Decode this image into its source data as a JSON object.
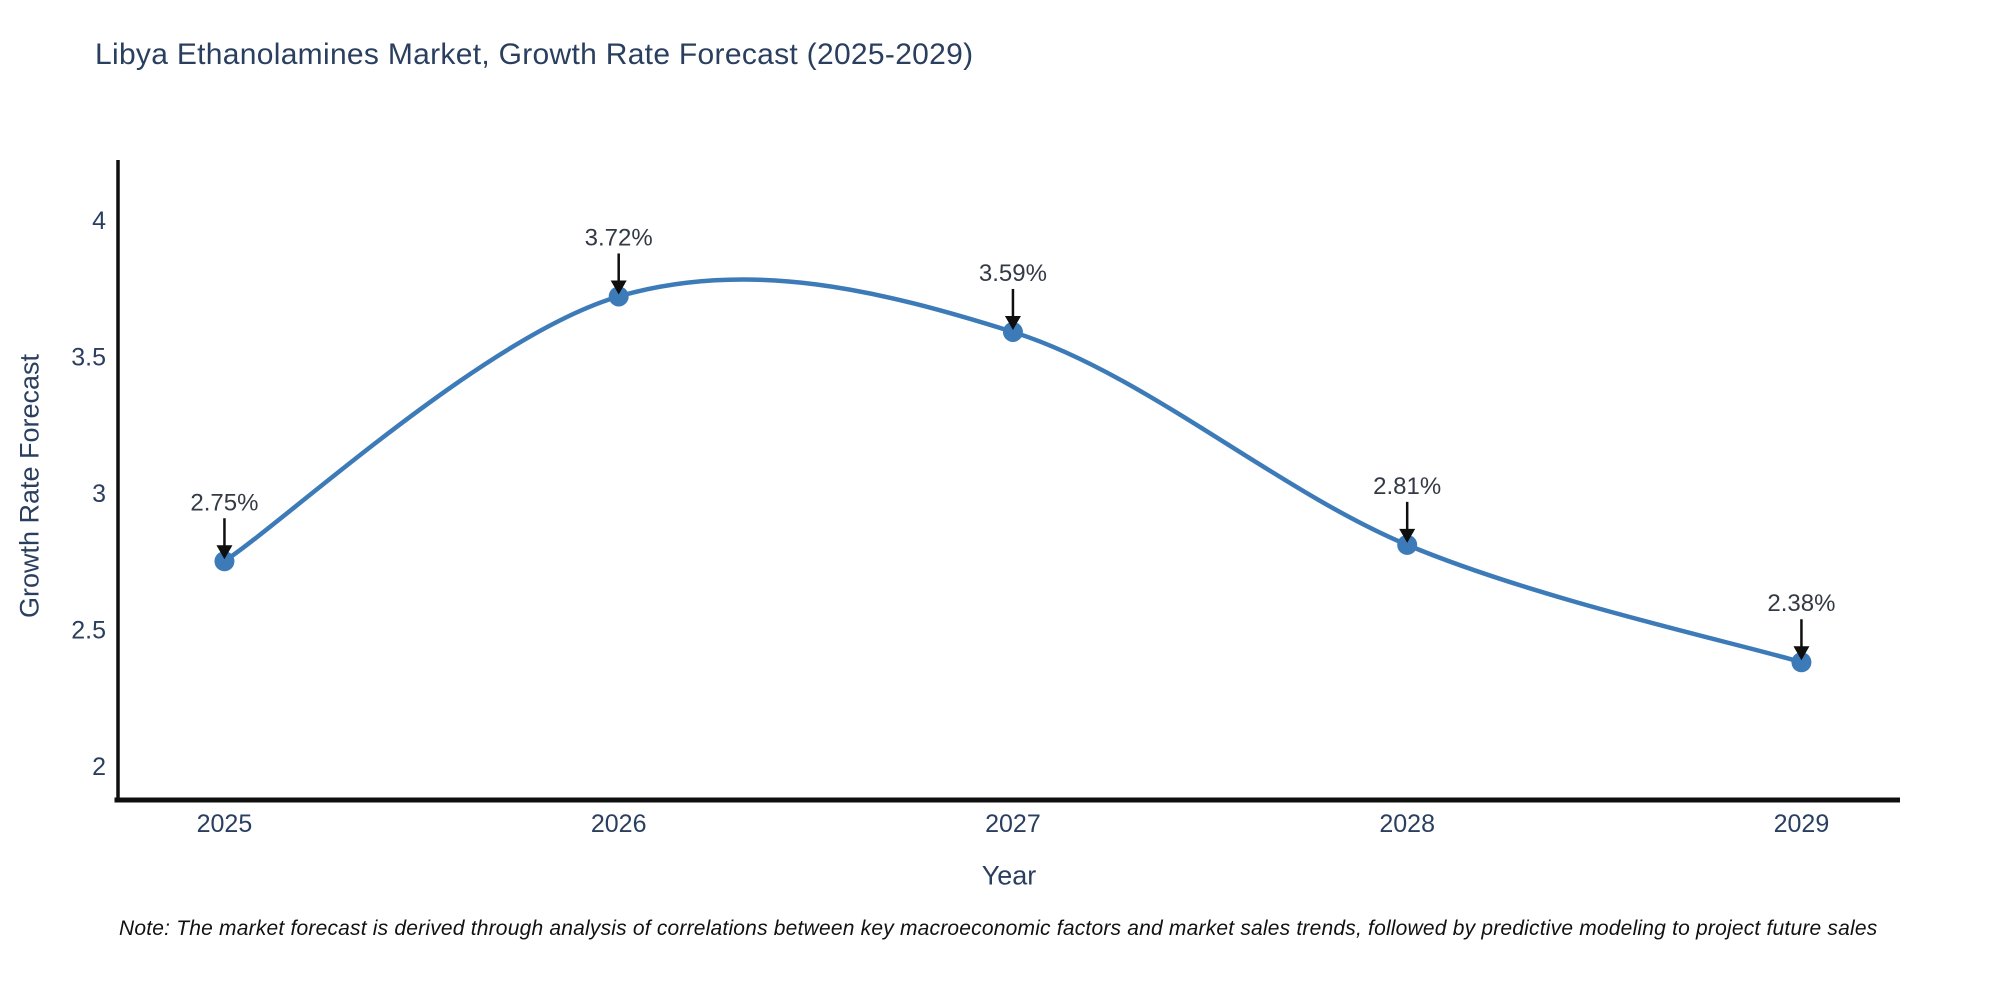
{
  "chart_data": {
    "type": "line",
    "title": "Libya Ethanolamines Market, Growth Rate Forecast (2025-2029)",
    "xlabel": "Year",
    "ylabel": "Growth Rate Forecast",
    "x": [
      2025,
      2026,
      2027,
      2028,
      2029
    ],
    "series": [
      {
        "name": "Growth Rate Forecast",
        "values": [
          2.75,
          3.72,
          3.59,
          2.81,
          2.38
        ],
        "point_labels": [
          "2.75%",
          "3.72%",
          "3.59%",
          "2.81%",
          "2.38%"
        ]
      }
    ],
    "line_shape": "spline",
    "markers": true,
    "annotation_arrows": true,
    "xticks": [
      "2025",
      "2026",
      "2027",
      "2028",
      "2029"
    ],
    "yticks": [
      2,
      2.5,
      3,
      3.5,
      4
    ],
    "ylim": [
      1.868,
      4.22
    ],
    "xlim": [
      2024.73,
      2029.25
    ],
    "grid": false,
    "legend_position": "none",
    "colors": {
      "line": "#3d7bb8",
      "marker": "#3d7bb8",
      "axis_text": "#2a3f5f",
      "annotation_text": "#333a45",
      "axis_line": "#0f0f0f",
      "arrow": "#0f0f0f",
      "background": "#ffffff"
    }
  },
  "note": "Note: The market forecast is derived through analysis of correlations between key macroeconomic factors and market sales trends, followed by predictive modeling to project future sales"
}
